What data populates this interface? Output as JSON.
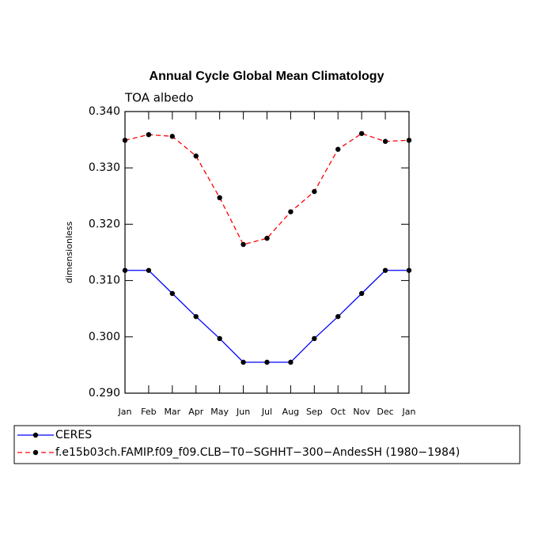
{
  "chart_data": {
    "type": "line",
    "title": "Annual Cycle Global Mean Climatology",
    "subtitle": "TOA albedo",
    "y_label": "dimensionless",
    "categories": [
      "Jan",
      "Feb",
      "Mar",
      "Apr",
      "May",
      "Jun",
      "Jul",
      "Aug",
      "Sep",
      "Oct",
      "Nov",
      "Dec",
      "Jan"
    ],
    "series": [
      {
        "name": "CERES",
        "color": "#0000ff",
        "dashed": false,
        "values": [
          0.3118,
          0.3118,
          0.3077,
          0.3036,
          0.2997,
          0.2955,
          0.2955,
          0.2955,
          0.2997,
          0.3036,
          0.3077,
          0.3118,
          0.3118
        ]
      },
      {
        "name": "f.e15b03ch.FAMIP.f09_f09.CLB−T0−SGHHT−300−AndesSH (1980−1984)",
        "color": "#ff0000",
        "dashed": true,
        "values": [
          0.3349,
          0.3359,
          0.3356,
          0.3321,
          0.3247,
          0.3164,
          0.3175,
          0.3222,
          0.3258,
          0.3333,
          0.3361,
          0.3347,
          0.3349
        ]
      }
    ],
    "ylim": [
      0.29,
      0.34
    ],
    "yticks": [
      {
        "value": 0.29,
        "label": "0.290"
      },
      {
        "value": 0.3,
        "label": "0.300"
      },
      {
        "value": 0.31,
        "label": "0.310"
      },
      {
        "value": 0.32,
        "label": "0.320"
      },
      {
        "value": 0.33,
        "label": "0.330"
      },
      {
        "value": 0.34,
        "label": "0.340"
      }
    ]
  }
}
